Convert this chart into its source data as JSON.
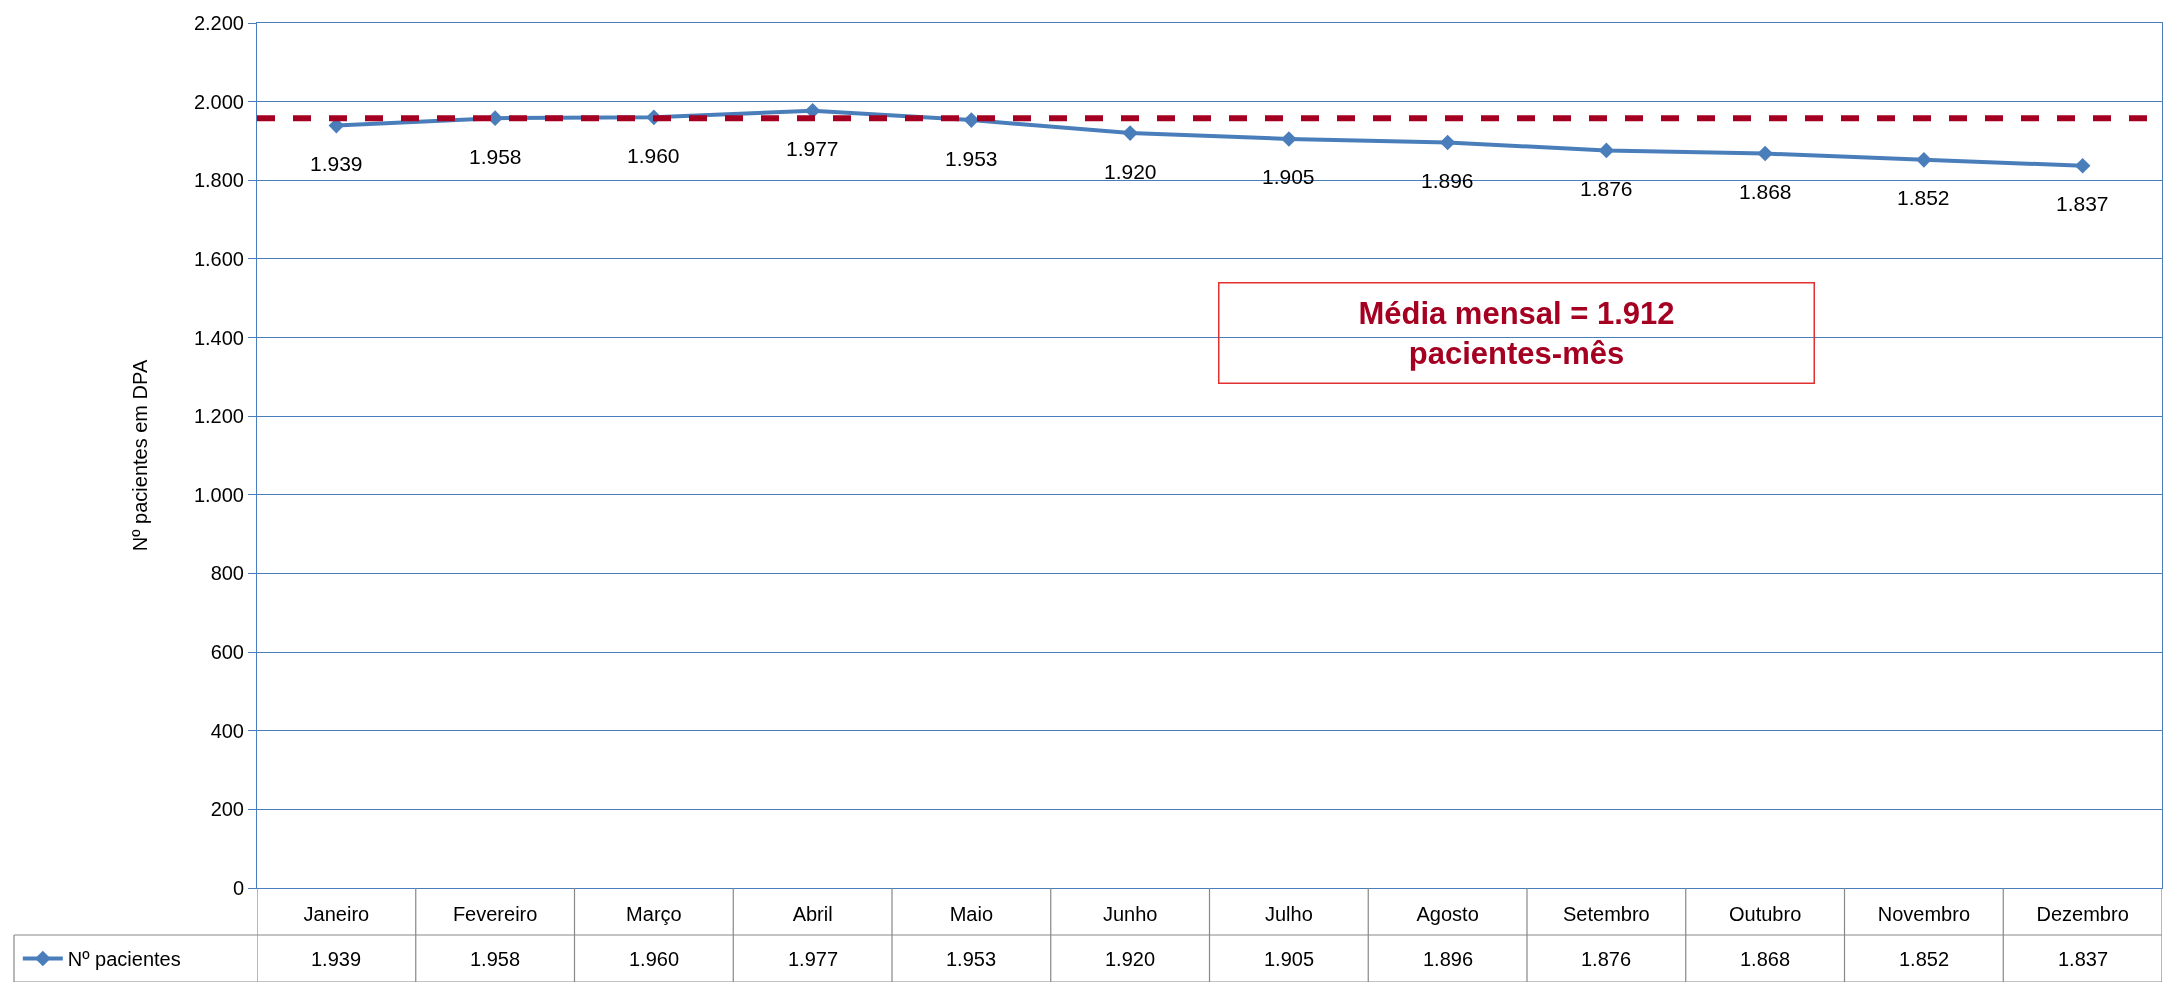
{
  "chart_data": {
    "type": "line",
    "ylabel": "Nº pacientes em DPA",
    "categories": [
      "Janeiro",
      "Fevereiro",
      "Março",
      "Abril",
      "Maio",
      "Junho",
      "Julho",
      "Agosto",
      "Setembro",
      "Outubro",
      "Novembro",
      "Dezembro"
    ],
    "series": [
      {
        "name": "Nº pacientes",
        "color": "#4a7ebb",
        "values": [
          1939,
          1958,
          1960,
          1977,
          1953,
          1920,
          1905,
          1896,
          1876,
          1868,
          1852,
          1837
        ],
        "value_labels": [
          "1.939",
          "1.958",
          "1.960",
          "1.977",
          "1.953",
          "1.920",
          "1.905",
          "1.896",
          "1.876",
          "1.868",
          "1.852",
          "1.837"
        ]
      }
    ],
    "ylim": [
      0,
      2200
    ],
    "yticks": [
      {
        "value": 0,
        "label": "0"
      },
      {
        "value": 200,
        "label": "200"
      },
      {
        "value": 400,
        "label": "400"
      },
      {
        "value": 600,
        "label": "600"
      },
      {
        "value": 800,
        "label": "800"
      },
      {
        "value": 1000,
        "label": "1.000"
      },
      {
        "value": 1200,
        "label": "1.200"
      },
      {
        "value": 1400,
        "label": "1.400"
      },
      {
        "value": 1600,
        "label": "1.600"
      },
      {
        "value": 1800,
        "label": "1.800"
      },
      {
        "value": 2000,
        "label": "2.000"
      },
      {
        "value": 2200,
        "label": "2.200"
      }
    ],
    "ref_lines": [
      {
        "axis": "y",
        "value": 1958,
        "color": "#a50021",
        "line_style": "dashed"
      }
    ],
    "annotations": [
      "Média mensal = 1.912\npacientes-mês"
    ],
    "grid": "y",
    "legend": "bottom left",
    "marker": "diamond",
    "line_style": "solid"
  }
}
